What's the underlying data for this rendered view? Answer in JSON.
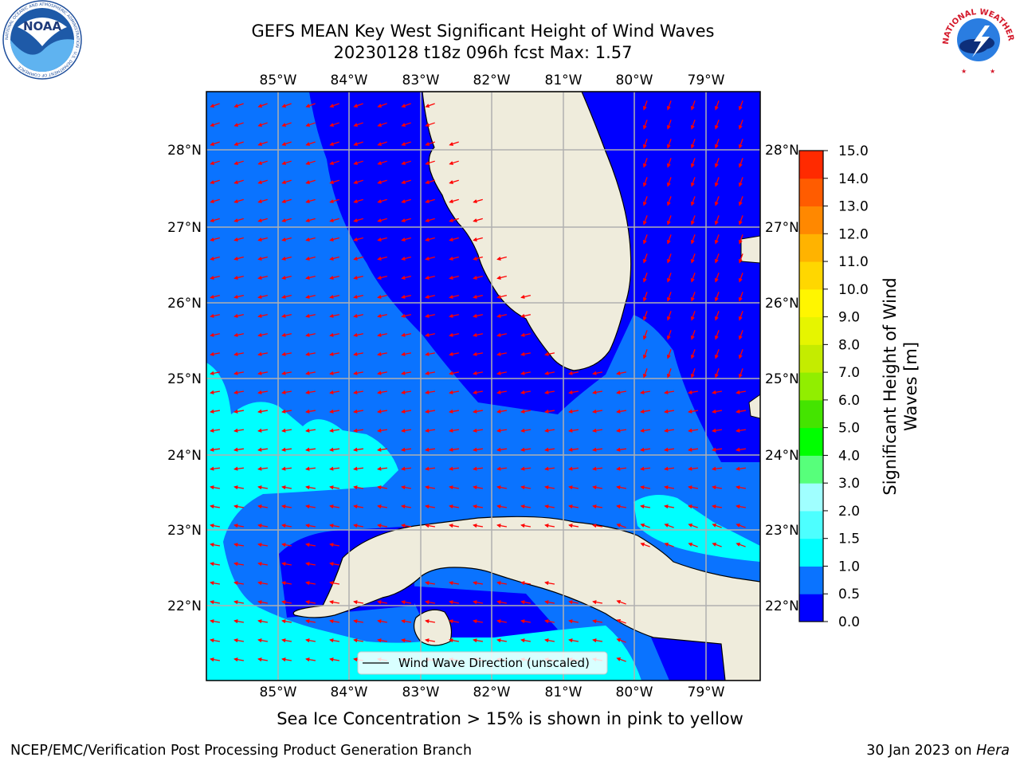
{
  "title_line1": "GEFS MEAN Key West Significant Height of Wind Waves",
  "title_line2": "20230128 t18z 096h fcst   Max: 1.57",
  "lon_ticks": [
    "85°W",
    "84°W",
    "83°W",
    "82°W",
    "81°W",
    "80°W",
    "79°W"
  ],
  "lat_ticks": [
    "28°N",
    "27°N",
    "26°N",
    "25°N",
    "24°N",
    "23°N",
    "22°N"
  ],
  "legend_label": "Wind Wave Direction (unscaled)",
  "colorbar": {
    "label_line1": "Significant Height of Wind",
    "label_line2": "Waves [m]",
    "ticks": [
      "0.0",
      "0.5",
      "1.0",
      "1.5",
      "2.0",
      "3.0",
      "4.0",
      "5.0",
      "6.0",
      "7.0",
      "8.0",
      "9.0",
      "10.0",
      "11.0",
      "12.0",
      "13.0",
      "14.0",
      "15.0"
    ],
    "colors": [
      "#0000ff",
      "#0a73ff",
      "#00ffff",
      "#4dffff",
      "#a0ffff",
      "#57ff7b",
      "#00ff00",
      "#44e400",
      "#91ee00",
      "#c4ec00",
      "#e6f500",
      "#fff600",
      "#ffd700",
      "#ffb300",
      "#ff8800",
      "#ff5c00",
      "#ff2a00",
      "#ff0000"
    ]
  },
  "sea_ice_note": "Sea Ice Concentration > 15% is shown in pink to yellow",
  "footer_left": "NCEP/EMC/Verification Post Processing Product Generation Branch",
  "footer_right_date": "30 Jan 2023 on",
  "footer_right_host": "Hera",
  "logos": {
    "noaa_text": "NOAA",
    "noaa_ring_text": "NATIONAL OCEANIC AND ATMOSPHERIC ADMINISTRATION · U.S. DEPARTMENT OF COMMERCE",
    "nws_ring_text": "NATIONAL WEATHER SERVICE"
  },
  "map_colors": {
    "land": "#efecdc",
    "arrow": "#ff0000",
    "grid": "#b0b0b0"
  }
}
